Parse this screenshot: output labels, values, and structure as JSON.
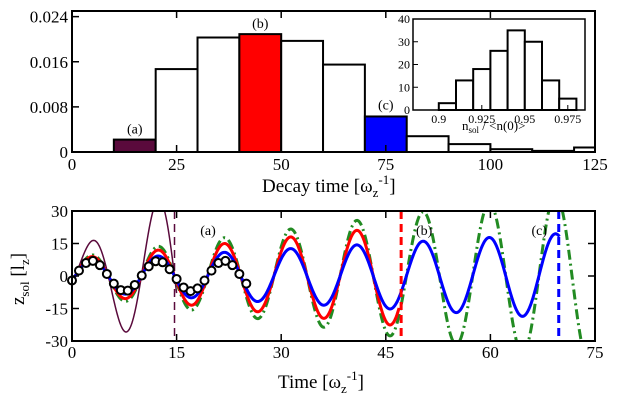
{
  "chart_data": [
    {
      "type": "bar",
      "title": "",
      "xlabel": "Decay time [ω_z^-1]",
      "ylabel": "",
      "xlim": [
        0,
        125
      ],
      "ylim": [
        0,
        0.025
      ],
      "xticks": [
        "0",
        "25",
        "50",
        "75",
        "100",
        "125"
      ],
      "yticks": [
        "0",
        "0.008",
        "0.016",
        "0.024"
      ],
      "bins": [
        {
          "x0": 10,
          "x1": 20,
          "value": 0.0022,
          "color": "#5a0a3c"
        },
        {
          "x0": 20,
          "x1": 30,
          "value": 0.0147,
          "color": "#ffffff"
        },
        {
          "x0": 30,
          "x1": 40,
          "value": 0.0203,
          "color": "#ffffff"
        },
        {
          "x0": 40,
          "x1": 50,
          "value": 0.0209,
          "color": "#ff0000"
        },
        {
          "x0": 50,
          "x1": 60,
          "value": 0.0197,
          "color": "#ffffff"
        },
        {
          "x0": 60,
          "x1": 70,
          "value": 0.0155,
          "color": "#ffffff"
        },
        {
          "x0": 70,
          "x1": 80,
          "value": 0.0063,
          "color": "#0000ff"
        },
        {
          "x0": 80,
          "x1": 90,
          "value": 0.0028,
          "color": "#ffffff"
        },
        {
          "x0": 90,
          "x1": 100,
          "value": 0.0014,
          "color": "#ffffff"
        },
        {
          "x0": 100,
          "x1": 110,
          "value": 0.0005,
          "color": "#ffffff"
        },
        {
          "x0": 110,
          "x1": 120,
          "value": 0.0002,
          "color": "#ffffff"
        },
        {
          "x0": 120,
          "x1": 125,
          "value": 0.0008,
          "color": "#ffffff"
        }
      ],
      "annotations": [
        {
          "text": "(a)",
          "x": 15,
          "y": 0.0033
        },
        {
          "text": "(b)",
          "x": 45,
          "y": 0.022
        },
        {
          "text": "(c)",
          "x": 75,
          "y": 0.0075
        }
      ],
      "inset": {
        "type": "bar",
        "xlabel": "n_sol / <n(0)>",
        "xlim": [
          0.885,
          0.985
        ],
        "ylim": [
          0,
          40
        ],
        "xticks": [
          "0.9",
          "0.925",
          "0.95",
          "0.975"
        ],
        "yticks": [
          "0",
          "10",
          "20",
          "30",
          "40"
        ],
        "bins": [
          {
            "x0": 0.9,
            "x1": 0.91,
            "value": 3
          },
          {
            "x0": 0.91,
            "x1": 0.92,
            "value": 13
          },
          {
            "x0": 0.92,
            "x1": 0.93,
            "value": 18
          },
          {
            "x0": 0.93,
            "x1": 0.94,
            "value": 26
          },
          {
            "x0": 0.94,
            "x1": 0.95,
            "value": 35
          },
          {
            "x0": 0.95,
            "x1": 0.96,
            "value": 30
          },
          {
            "x0": 0.96,
            "x1": 0.97,
            "value": 13
          },
          {
            "x0": 0.97,
            "x1": 0.98,
            "value": 5
          }
        ]
      }
    },
    {
      "type": "line",
      "title": "",
      "xlabel": "Time [ω_z^-1]",
      "ylabel": "z_sol [l_z]",
      "xlim": [
        0,
        75
      ],
      "ylim": [
        -30,
        30
      ],
      "xticks": [
        "0",
        "15",
        "30",
        "45",
        "60",
        "75"
      ],
      "yticks": [
        "-30",
        "-15",
        "0",
        "15",
        "30"
      ],
      "series": [
        {
          "color": "#5a0a3c",
          "style": "solid",
          "period": 9.5,
          "amp_start": 10.5,
          "amp_growth": 2.0,
          "t_end": 15
        },
        {
          "color": "#228b22",
          "style": "dashdot",
          "period": 9.5,
          "amp_start": 8.5,
          "amp_growth": 0.42,
          "t_end": 75
        },
        {
          "color": "#ff0000",
          "style": "solid",
          "period": 9.5,
          "amp_start": 8.0,
          "amp_growth": 0.32,
          "t_end": 47
        },
        {
          "color": "#0000ff",
          "style": "solid",
          "period": 9.5,
          "amp_start": 7.0,
          "amp_growth": 0.18,
          "t_end": 70
        }
      ],
      "markers": {
        "t_step": 1.0,
        "t_end": 25,
        "amp": 7.0,
        "period": 9.5
      },
      "vlines": [
        {
          "x": 14.7,
          "color": "#5a0a3c"
        },
        {
          "x": 47.2,
          "color": "#ff0000"
        },
        {
          "x": 69.8,
          "color": "#0000ff"
        }
      ],
      "annotations": [
        {
          "text": "(a)",
          "x": 19.5,
          "y": 19
        },
        {
          "text": "(b)",
          "x": 50.5,
          "y": 19
        },
        {
          "text": "(c)",
          "x": 67.0,
          "y": 19
        }
      ]
    }
  ]
}
